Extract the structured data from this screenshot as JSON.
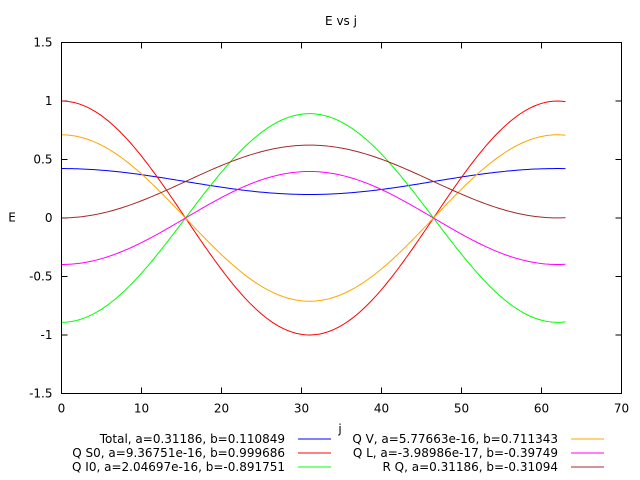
{
  "chart_data": {
    "type": "line",
    "title": "E vs j",
    "xlabel": "j",
    "ylabel": "E",
    "xlim": [
      0,
      70
    ],
    "ylim": [
      -1.5,
      1.5
    ],
    "x_ticks": [
      "0",
      "10",
      "20",
      "30",
      "40",
      "50",
      "60",
      "70"
    ],
    "y_ticks": [
      "-1.5",
      "-1",
      "-0.5",
      "0",
      "0.5",
      "1",
      "1.5"
    ],
    "grid": false,
    "legend_position": "bottom",
    "x_range": [
      0,
      63
    ],
    "period": 62,
    "series": [
      {
        "name": "Total, a=0.31186, b=0.110849",
        "color": "#0000ff",
        "a": 0.31186,
        "b": 0.110849
      },
      {
        "name": "Q S0, a=9.36751e-16, b=0.999686",
        "color": "#ff0000",
        "a": 9.36751e-16,
        "b": 0.999686
      },
      {
        "name": "Q I0, a=2.04697e-16, b=-0.891751",
        "color": "#00ff00",
        "a": 2.04697e-16,
        "b": -0.891751
      },
      {
        "name": "Q V, a=5.77663e-16, b=0.711343",
        "color": "#ffa500",
        "a": 5.77663e-16,
        "b": 0.711343
      },
      {
        "name": "Q L, a=-3.98986e-17, b=-0.39749",
        "color": "#ff00ff",
        "a": -3.98986e-17,
        "b": -0.39749
      },
      {
        "name": "R Q, a=0.31186, b=-0.31094",
        "color": "#a52a2a",
        "a": 0.31186,
        "b": -0.31094
      }
    ]
  }
}
